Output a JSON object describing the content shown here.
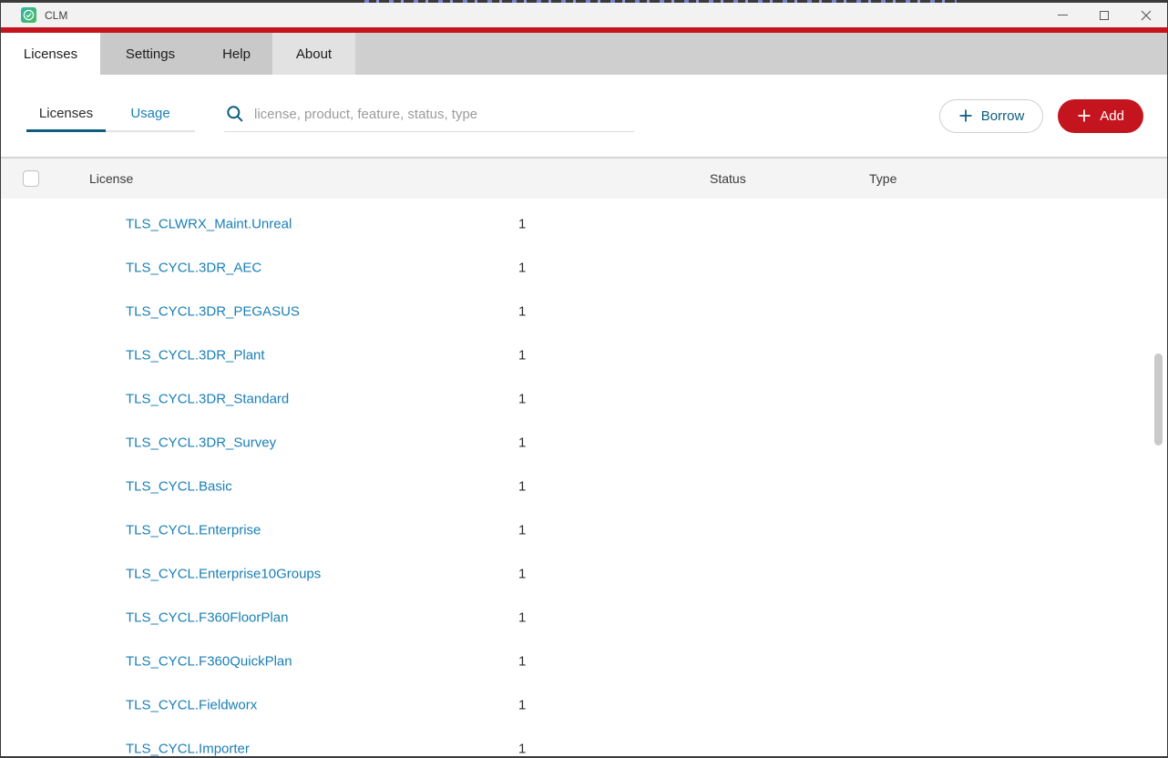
{
  "window": {
    "title": "CLM",
    "icons": {
      "app": "check-circle",
      "minimize": "minimize",
      "maximize": "maximize",
      "close": "close"
    }
  },
  "menu_tabs": [
    {
      "label": "Licenses",
      "active": true
    },
    {
      "label": "Settings",
      "active": false
    },
    {
      "label": "Help",
      "active": false
    },
    {
      "label": "About",
      "active": false
    }
  ],
  "view_tabs": [
    {
      "label": "Licenses",
      "active": true
    },
    {
      "label": "Usage",
      "active": false
    }
  ],
  "search": {
    "placeholder": "license, product, feature, status, type",
    "value": "",
    "icon": "magnifier"
  },
  "toolbar": {
    "borrow_label": "Borrow",
    "add_label": "Add",
    "borrow_icon": "plus",
    "add_icon": "plus"
  },
  "table": {
    "columns": [
      "License",
      "Status",
      "Type"
    ],
    "header_checkbox_checked": false,
    "rows": [
      {
        "license": "TLS_CLWRX_Maint.Unreal",
        "count": "1",
        "status": "",
        "type": ""
      },
      {
        "license": "TLS_CYCL.3DR_AEC",
        "count": "1",
        "status": "",
        "type": ""
      },
      {
        "license": "TLS_CYCL.3DR_PEGASUS",
        "count": "1",
        "status": "",
        "type": ""
      },
      {
        "license": "TLS_CYCL.3DR_Plant",
        "count": "1",
        "status": "",
        "type": ""
      },
      {
        "license": "TLS_CYCL.3DR_Standard",
        "count": "1",
        "status": "",
        "type": ""
      },
      {
        "license": "TLS_CYCL.3DR_Survey",
        "count": "1",
        "status": "",
        "type": ""
      },
      {
        "license": "TLS_CYCL.Basic",
        "count": "1",
        "status": "",
        "type": ""
      },
      {
        "license": "TLS_CYCL.Enterprise",
        "count": "1",
        "status": "",
        "type": ""
      },
      {
        "license": "TLS_CYCL.Enterprise10Groups",
        "count": "1",
        "status": "",
        "type": ""
      },
      {
        "license": "TLS_CYCL.F360FloorPlan",
        "count": "1",
        "status": "",
        "type": ""
      },
      {
        "license": "TLS_CYCL.F360QuickPlan",
        "count": "1",
        "status": "",
        "type": ""
      },
      {
        "license": "TLS_CYCL.Fieldworx",
        "count": "1",
        "status": "",
        "type": ""
      },
      {
        "license": "TLS_CYCL.Importer",
        "count": "1",
        "status": "",
        "type": ""
      }
    ]
  },
  "colors": {
    "accent_red": "#c4141e",
    "link_blue": "#1a7fb5",
    "navy": "#0d5c7e"
  }
}
